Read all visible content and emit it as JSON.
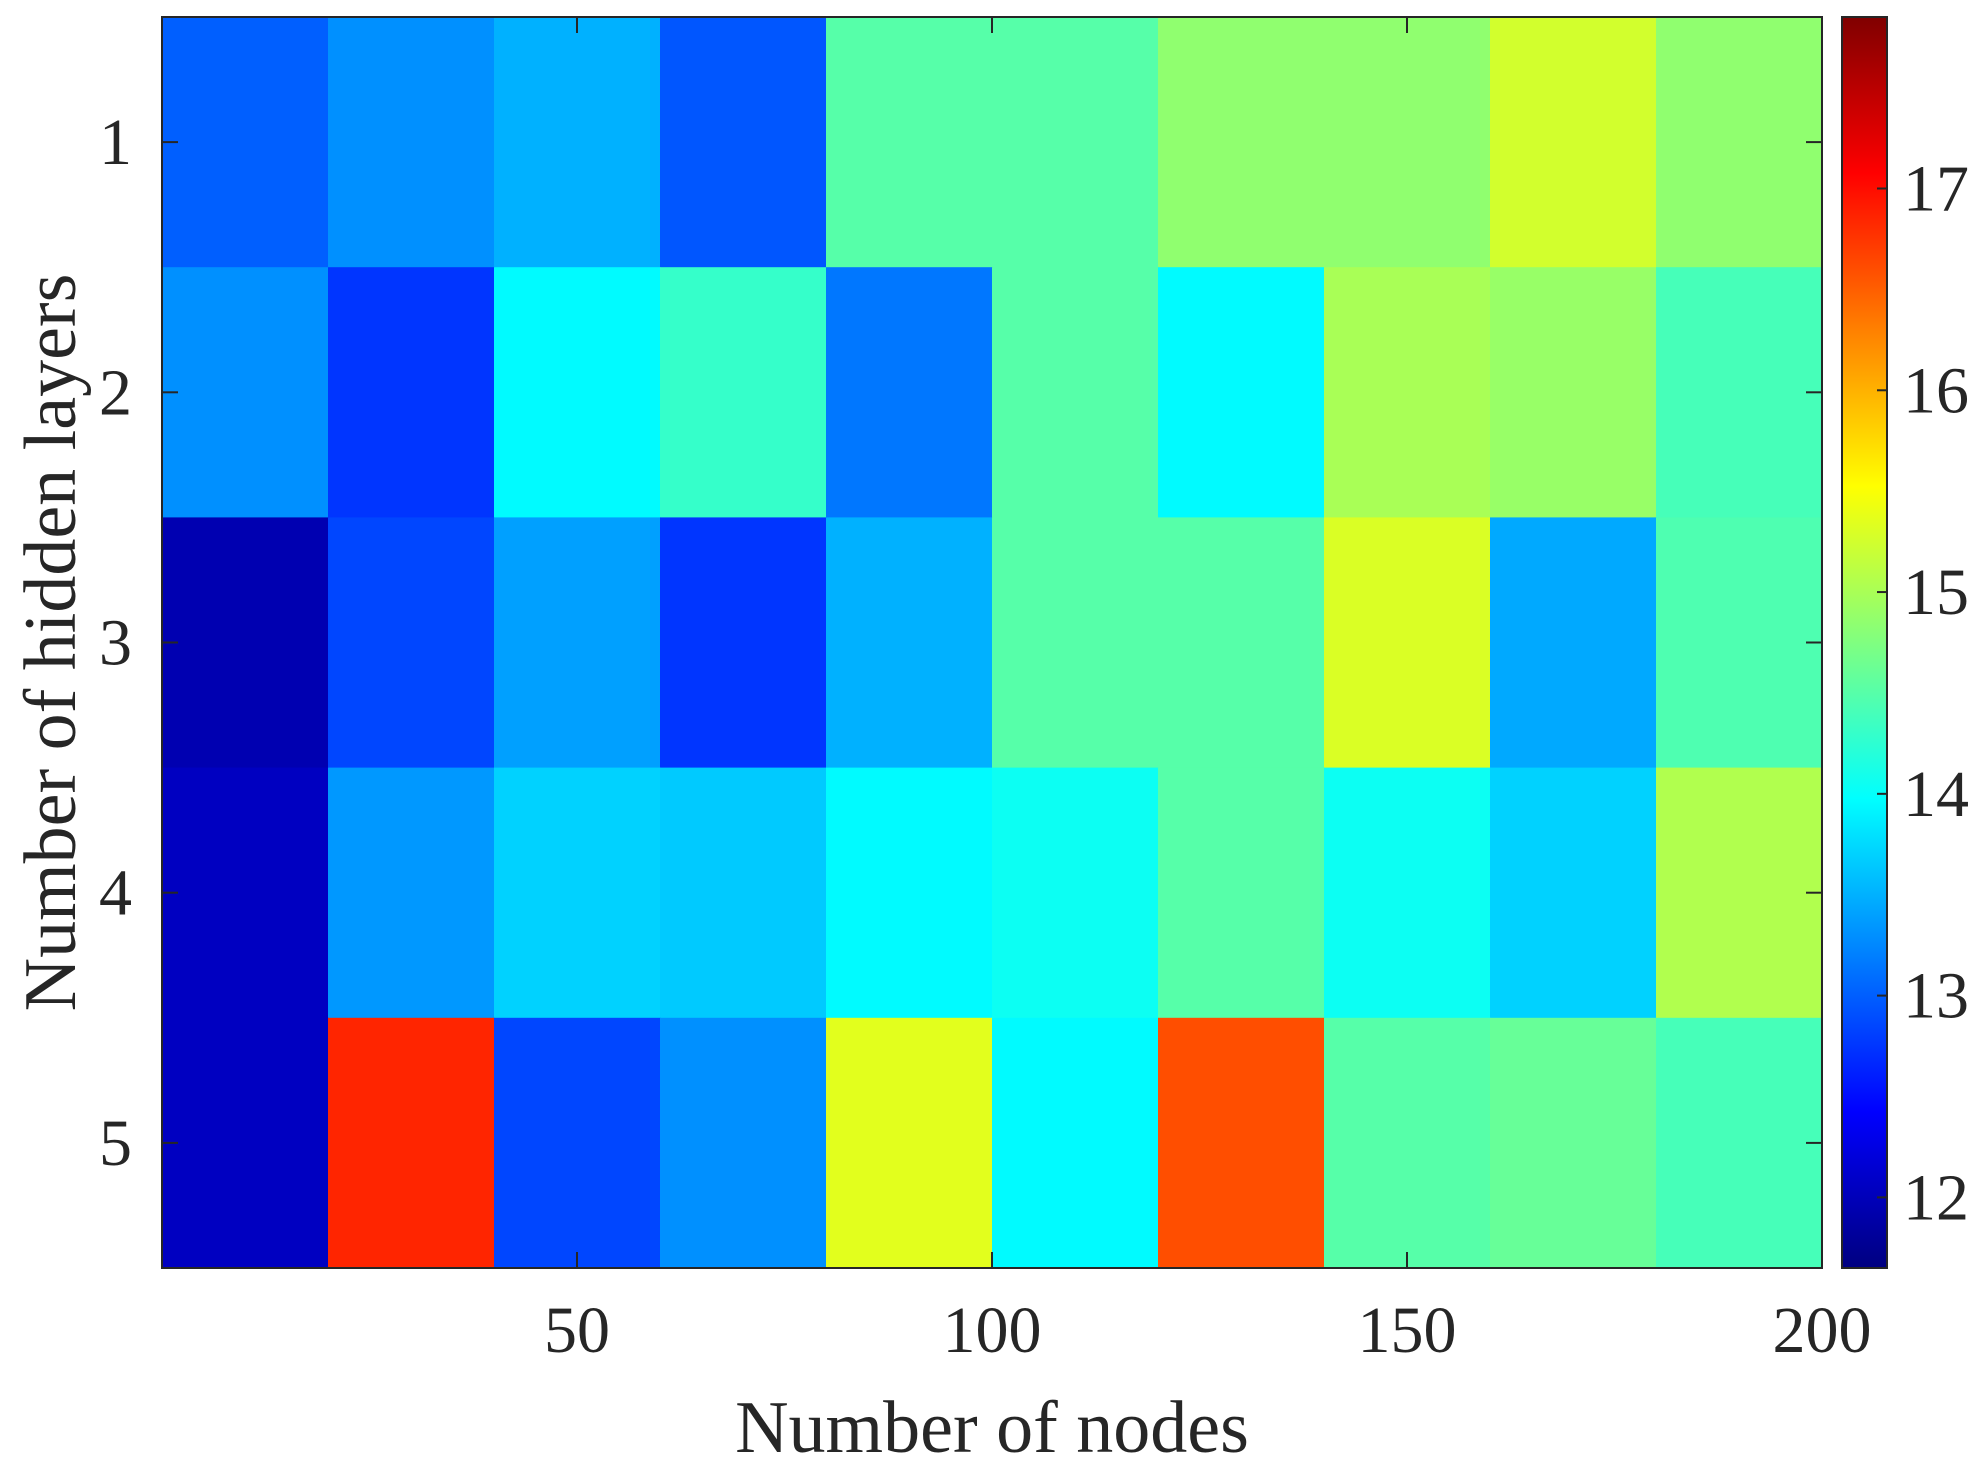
{
  "chart_data": {
    "type": "heatmap",
    "title": "",
    "xlabel": "Number of nodes",
    "ylabel": "Number of hidden layers",
    "x": [
      10,
      30,
      50,
      70,
      90,
      110,
      130,
      150,
      170,
      190
    ],
    "y": [
      1,
      2,
      3,
      4,
      5
    ],
    "x_ticks": [
      50,
      100,
      150,
      200
    ],
    "y_ticks": [
      1,
      2,
      3,
      4,
      5
    ],
    "values": [
      [
        13.0,
        13.3,
        13.5,
        12.95,
        14.5,
        14.5,
        14.85,
        14.85,
        15.25,
        14.85
      ],
      [
        13.3,
        12.75,
        13.95,
        14.3,
        13.15,
        14.5,
        13.95,
        15.0,
        14.9,
        14.4
      ],
      [
        11.95,
        12.85,
        13.4,
        12.75,
        13.5,
        14.5,
        14.5,
        15.3,
        13.45,
        14.45
      ],
      [
        12.05,
        13.35,
        13.7,
        13.65,
        13.95,
        14.05,
        14.5,
        14.05,
        13.7,
        15.05
      ],
      [
        12.05,
        16.85,
        12.85,
        13.3,
        15.35,
        13.95,
        16.6,
        14.5,
        14.6,
        14.4
      ]
    ],
    "clim": [
      11.65,
      17.85
    ],
    "colorbar_ticks": [
      12,
      13,
      14,
      15,
      16,
      17
    ],
    "colormap": "jet",
    "grid": false,
    "colorbar_position": "right"
  }
}
